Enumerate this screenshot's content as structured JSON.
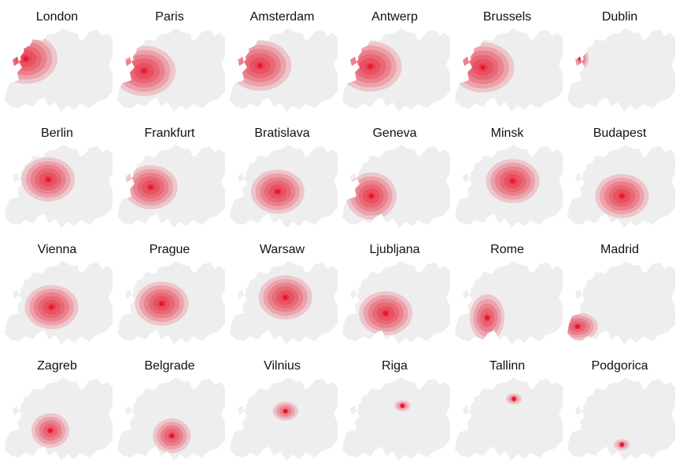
{
  "palette": {
    "land": "#eeeeee",
    "heat": "#e8132b",
    "text": "#111111"
  },
  "panels": [
    {
      "city": "London",
      "hub": [
        0.22,
        0.38
      ],
      "spread": "west-wide"
    },
    {
      "city": "Paris",
      "hub": [
        0.27,
        0.52
      ],
      "spread": "west-wide"
    },
    {
      "city": "Amsterdam",
      "hub": [
        0.3,
        0.46
      ],
      "spread": "west-wide"
    },
    {
      "city": "Antwerp",
      "hub": [
        0.28,
        0.47
      ],
      "spread": "west-wide"
    },
    {
      "city": "Brussels",
      "hub": [
        0.28,
        0.48
      ],
      "spread": "west-wide"
    },
    {
      "city": "Dublin",
      "hub": [
        0.15,
        0.38
      ],
      "spread": "island"
    },
    {
      "city": "Berlin",
      "hub": [
        0.42,
        0.43
      ],
      "spread": "central"
    },
    {
      "city": "Frankfurt",
      "hub": [
        0.33,
        0.52
      ],
      "spread": "central"
    },
    {
      "city": "Bratislava",
      "hub": [
        0.46,
        0.57
      ],
      "spread": "central"
    },
    {
      "city": "Geneva",
      "hub": [
        0.29,
        0.62
      ],
      "spread": "central-west"
    },
    {
      "city": "Minsk",
      "hub": [
        0.55,
        0.45
      ],
      "spread": "central"
    },
    {
      "city": "Budapest",
      "hub": [
        0.52,
        0.62
      ],
      "spread": "central"
    },
    {
      "city": "Vienna",
      "hub": [
        0.45,
        0.56
      ],
      "spread": "central"
    },
    {
      "city": "Prague",
      "hub": [
        0.43,
        0.52
      ],
      "spread": "central"
    },
    {
      "city": "Warsaw",
      "hub": [
        0.53,
        0.45
      ],
      "spread": "central"
    },
    {
      "city": "Ljubljana",
      "hub": [
        0.42,
        0.63
      ],
      "spread": "central"
    },
    {
      "city": "Rome",
      "hub": [
        0.32,
        0.68
      ],
      "spread": "italy"
    },
    {
      "city": "Madrid",
      "hub": [
        0.12,
        0.78
      ],
      "spread": "iberia"
    },
    {
      "city": "Zagreb",
      "hub": [
        0.44,
        0.64
      ],
      "spread": "balkan"
    },
    {
      "city": "Belgrade",
      "hub": [
        0.52,
        0.7
      ],
      "spread": "balkan"
    },
    {
      "city": "Vilnius",
      "hub": [
        0.53,
        0.42
      ],
      "spread": "small"
    },
    {
      "city": "Riga",
      "hub": [
        0.57,
        0.36
      ],
      "spread": "tiny"
    },
    {
      "city": "Tallinn",
      "hub": [
        0.56,
        0.28
      ],
      "spread": "tiny"
    },
    {
      "city": "Podgorica",
      "hub": [
        0.52,
        0.8
      ],
      "spread": "tiny"
    }
  ]
}
